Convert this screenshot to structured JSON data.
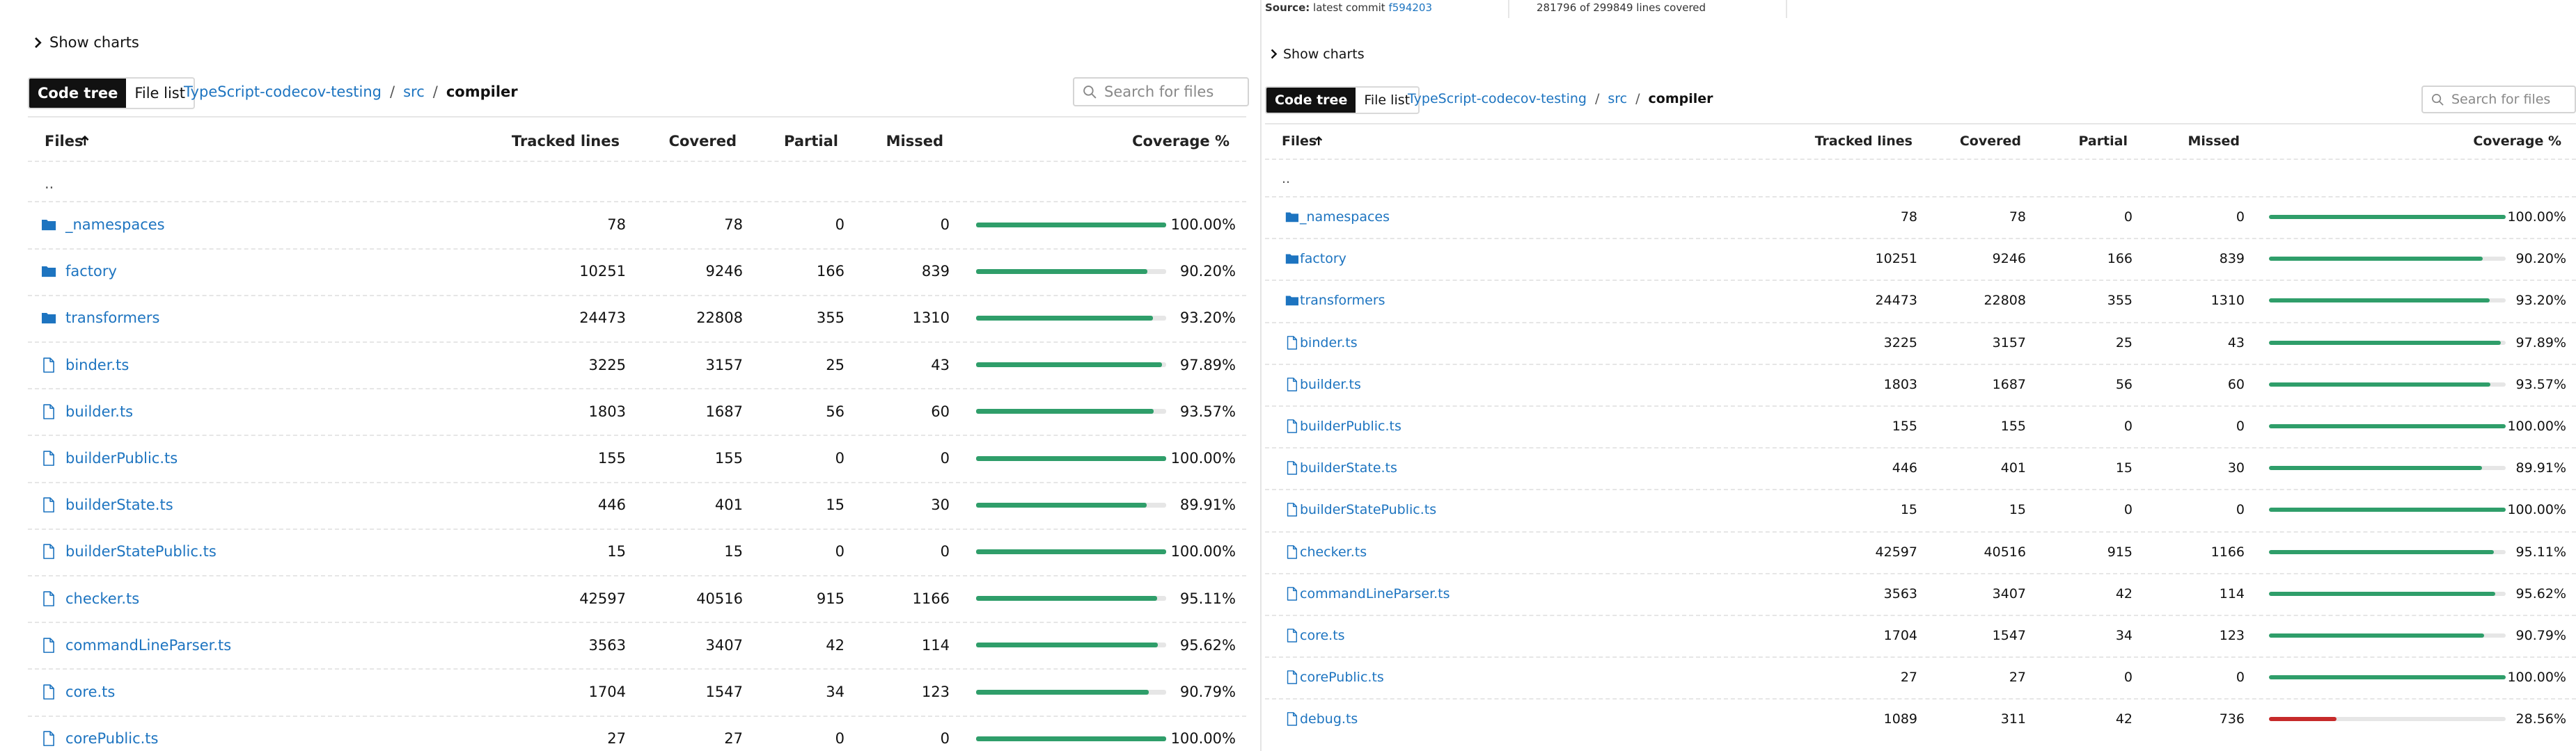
{
  "source": {
    "label": "Source:",
    "text": "latest commit",
    "commit": "f594203",
    "lines": "281796 of 299849 lines covered"
  },
  "panels": [
    {
      "show_charts": "Show charts",
      "tabs": [
        "Code tree",
        "File list"
      ],
      "breadcrumb": [
        "TypeScript-codecov-testing",
        "src",
        "compiler"
      ],
      "separator": "/",
      "search_placeholder": "Search for files",
      "headers": [
        "Files",
        "Tracked lines",
        "Covered",
        "Partial",
        "Missed",
        "Coverage %"
      ],
      "parent_row": "..",
      "coverage_range": [
        0,
        100
      ],
      "rows": [
        {
          "kind": "folder",
          "name": "_namespaces",
          "tracked": 78,
          "covered": 78,
          "partial": 0,
          "missed": 0,
          "coverage": {
            "value": 100,
            "label": "100.00%"
          },
          "color": "#2f9e6a"
        },
        {
          "kind": "folder",
          "name": "factory",
          "tracked": 10251,
          "covered": 9246,
          "partial": 166,
          "missed": 839,
          "coverage": {
            "value": 90.2,
            "label": "90.20%"
          },
          "color": "#2f9e6a"
        },
        {
          "kind": "folder",
          "name": "transformers",
          "tracked": 24473,
          "covered": 22808,
          "partial": 355,
          "missed": 1310,
          "coverage": {
            "value": 93.2,
            "label": "93.20%"
          },
          "color": "#2f9e6a"
        },
        {
          "kind": "file",
          "name": "binder.ts",
          "tracked": 3225,
          "covered": 3157,
          "partial": 25,
          "missed": 43,
          "coverage": {
            "value": 97.89,
            "label": "97.89%"
          },
          "color": "#2f9e6a"
        },
        {
          "kind": "file",
          "name": "builder.ts",
          "tracked": 1803,
          "covered": 1687,
          "partial": 56,
          "missed": 60,
          "coverage": {
            "value": 93.57,
            "label": "93.57%"
          },
          "color": "#2f9e6a"
        },
        {
          "kind": "file",
          "name": "builderPublic.ts",
          "tracked": 155,
          "covered": 155,
          "partial": 0,
          "missed": 0,
          "coverage": {
            "value": 100,
            "label": "100.00%"
          },
          "color": "#2f9e6a"
        },
        {
          "kind": "file",
          "name": "builderState.ts",
          "tracked": 446,
          "covered": 401,
          "partial": 15,
          "missed": 30,
          "coverage": {
            "value": 89.91,
            "label": "89.91%"
          },
          "color": "#2f9e6a"
        },
        {
          "kind": "file",
          "name": "builderStatePublic.ts",
          "tracked": 15,
          "covered": 15,
          "partial": 0,
          "missed": 0,
          "coverage": {
            "value": 100,
            "label": "100.00%"
          },
          "color": "#2f9e6a"
        },
        {
          "kind": "file",
          "name": "checker.ts",
          "tracked": 42597,
          "covered": 40516,
          "partial": 915,
          "missed": 1166,
          "coverage": {
            "value": 95.11,
            "label": "95.11%"
          },
          "color": "#2f9e6a"
        },
        {
          "kind": "file",
          "name": "commandLineParser.ts",
          "tracked": 3563,
          "covered": 3407,
          "partial": 42,
          "missed": 114,
          "coverage": {
            "value": 95.62,
            "label": "95.62%"
          },
          "color": "#2f9e6a"
        },
        {
          "kind": "file",
          "name": "core.ts",
          "tracked": 1704,
          "covered": 1547,
          "partial": 34,
          "missed": 123,
          "coverage": {
            "value": 90.79,
            "label": "90.79%"
          },
          "color": "#2f9e6a"
        },
        {
          "kind": "file",
          "name": "corePublic.ts",
          "tracked": 27,
          "covered": 27,
          "partial": 0,
          "missed": 0,
          "coverage": {
            "value": 100,
            "label": "100.00%"
          },
          "color": "#2f9e6a"
        }
      ]
    },
    {
      "show_charts": "Show charts",
      "tabs": [
        "Code tree",
        "File list"
      ],
      "breadcrumb": [
        "TypeScript-codecov-testing",
        "src",
        "compiler"
      ],
      "separator": "/",
      "search_placeholder": "Search for files",
      "headers": [
        "Files",
        "Tracked lines",
        "Covered",
        "Partial",
        "Missed",
        "Coverage %"
      ],
      "parent_row": "..",
      "coverage_range": [
        0,
        100
      ],
      "rows": [
        {
          "kind": "folder",
          "name": "_namespaces",
          "tracked": 78,
          "covered": 78,
          "partial": 0,
          "missed": 0,
          "coverage": {
            "value": 100,
            "label": "100.00%"
          },
          "color": "#2f9e6a"
        },
        {
          "kind": "folder",
          "name": "factory",
          "tracked": 10251,
          "covered": 9246,
          "partial": 166,
          "missed": 839,
          "coverage": {
            "value": 90.2,
            "label": "90.20%"
          },
          "color": "#2f9e6a"
        },
        {
          "kind": "folder",
          "name": "transformers",
          "tracked": 24473,
          "covered": 22808,
          "partial": 355,
          "missed": 1310,
          "coverage": {
            "value": 93.2,
            "label": "93.20%"
          },
          "color": "#2f9e6a"
        },
        {
          "kind": "file",
          "name": "binder.ts",
          "tracked": 3225,
          "covered": 3157,
          "partial": 25,
          "missed": 43,
          "coverage": {
            "value": 97.89,
            "label": "97.89%"
          },
          "color": "#2f9e6a"
        },
        {
          "kind": "file",
          "name": "builder.ts",
          "tracked": 1803,
          "covered": 1687,
          "partial": 56,
          "missed": 60,
          "coverage": {
            "value": 93.57,
            "label": "93.57%"
          },
          "color": "#2f9e6a"
        },
        {
          "kind": "file",
          "name": "builderPublic.ts",
          "tracked": 155,
          "covered": 155,
          "partial": 0,
          "missed": 0,
          "coverage": {
            "value": 100,
            "label": "100.00%"
          },
          "color": "#2f9e6a"
        },
        {
          "kind": "file",
          "name": "builderState.ts",
          "tracked": 446,
          "covered": 401,
          "partial": 15,
          "missed": 30,
          "coverage": {
            "value": 89.91,
            "label": "89.91%"
          },
          "color": "#2f9e6a"
        },
        {
          "kind": "file",
          "name": "builderStatePublic.ts",
          "tracked": 15,
          "covered": 15,
          "partial": 0,
          "missed": 0,
          "coverage": {
            "value": 100,
            "label": "100.00%"
          },
          "color": "#2f9e6a"
        },
        {
          "kind": "file",
          "name": "checker.ts",
          "tracked": 42597,
          "covered": 40516,
          "partial": 915,
          "missed": 1166,
          "coverage": {
            "value": 95.11,
            "label": "95.11%"
          },
          "color": "#2f9e6a"
        },
        {
          "kind": "file",
          "name": "commandLineParser.ts",
          "tracked": 3563,
          "covered": 3407,
          "partial": 42,
          "missed": 114,
          "coverage": {
            "value": 95.62,
            "label": "95.62%"
          },
          "color": "#2f9e6a"
        },
        {
          "kind": "file",
          "name": "core.ts",
          "tracked": 1704,
          "covered": 1547,
          "partial": 34,
          "missed": 123,
          "coverage": {
            "value": 90.79,
            "label": "90.79%"
          },
          "color": "#2f9e6a"
        },
        {
          "kind": "file",
          "name": "corePublic.ts",
          "tracked": 27,
          "covered": 27,
          "partial": 0,
          "missed": 0,
          "coverage": {
            "value": 100,
            "label": "100.00%"
          },
          "color": "#2f9e6a"
        },
        {
          "kind": "file",
          "name": "debug.ts",
          "tracked": 1089,
          "covered": 311,
          "partial": 42,
          "missed": 736,
          "coverage": {
            "value": 28.56,
            "label": "28.56%"
          },
          "color": "#c62a2a"
        }
      ]
    }
  ]
}
